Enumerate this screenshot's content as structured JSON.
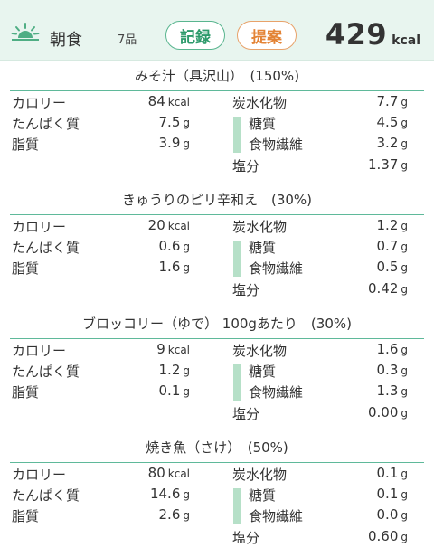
{
  "header": {
    "meal": "朝食",
    "count": "7品",
    "record_label": "記録",
    "suggest_label": "提案",
    "total_value": "429",
    "total_unit": "kcal",
    "icon": "sunrise-icon",
    "accent_color": "#2d9a6b",
    "suggest_color": "#e38335"
  },
  "labels": {
    "calorie": "カロリー",
    "protein": "たんぱく質",
    "fat": "脂質",
    "carbs": "炭水化物",
    "sugar": "糖質",
    "fiber": "食物繊維",
    "salt": "塩分"
  },
  "units": {
    "kcal": "kcal",
    "g": "g"
  },
  "foods": [
    {
      "name": "みそ汁（具沢山）　(150%)",
      "calorie": "84",
      "protein": "7.5",
      "fat": "3.9",
      "carbs": "7.7",
      "sugar": "4.5",
      "fiber": "3.2",
      "salt": "1.37"
    },
    {
      "name": "きゅうりのピリ辛和え　(30%)",
      "calorie": "20",
      "protein": "0.6",
      "fat": "1.6",
      "carbs": "1.2",
      "sugar": "0.7",
      "fiber": "0.5",
      "salt": "0.42"
    },
    {
      "name": "ブロッコリー（ゆで）  100gあたり　(30%)",
      "calorie": "9",
      "protein": "1.2",
      "fat": "0.1",
      "carbs": "1.6",
      "sugar": "0.3",
      "fiber": "1.3",
      "salt": "0.00"
    },
    {
      "name": "焼き魚（さけ）　(50%)",
      "calorie": "80",
      "protein": "14.6",
      "fat": "2.6",
      "carbs": "0.1",
      "sugar": "0.1",
      "fiber": "0.0",
      "salt": "0.60"
    }
  ]
}
